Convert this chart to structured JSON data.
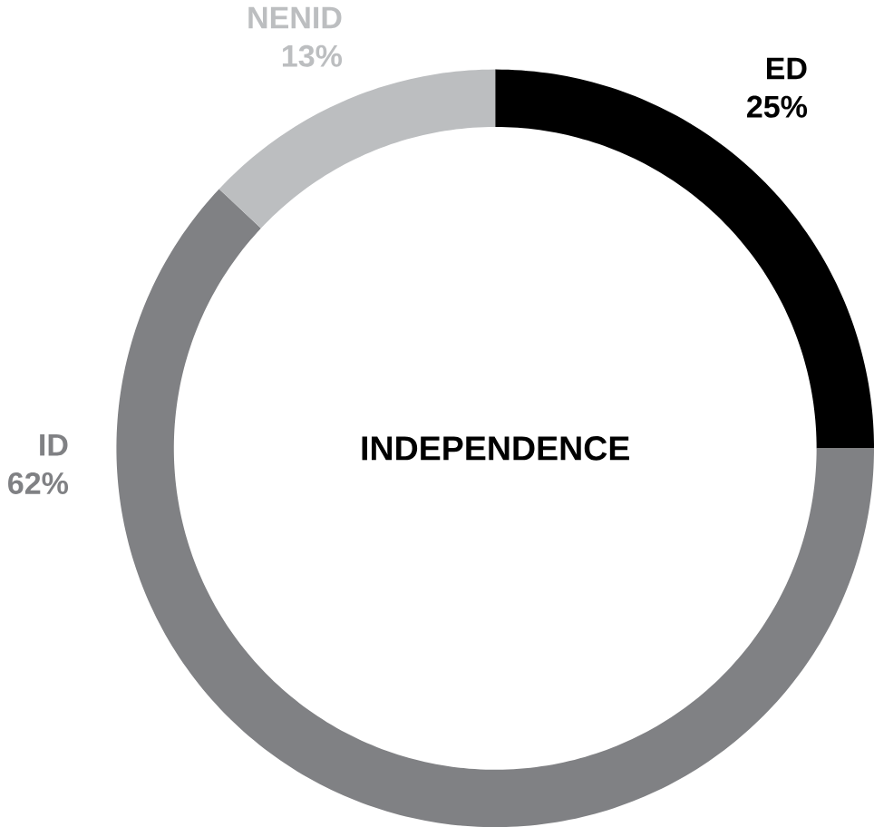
{
  "chart_data": {
    "type": "donut",
    "title": "INDEPENDENCE",
    "categories": [
      "ED",
      "ID",
      "NENID"
    ],
    "values": [
      25,
      62,
      13
    ],
    "value_labels": [
      "25%",
      "62%",
      "13%"
    ],
    "colors": [
      "#000000",
      "#808184",
      "#bcbec0"
    ]
  }
}
